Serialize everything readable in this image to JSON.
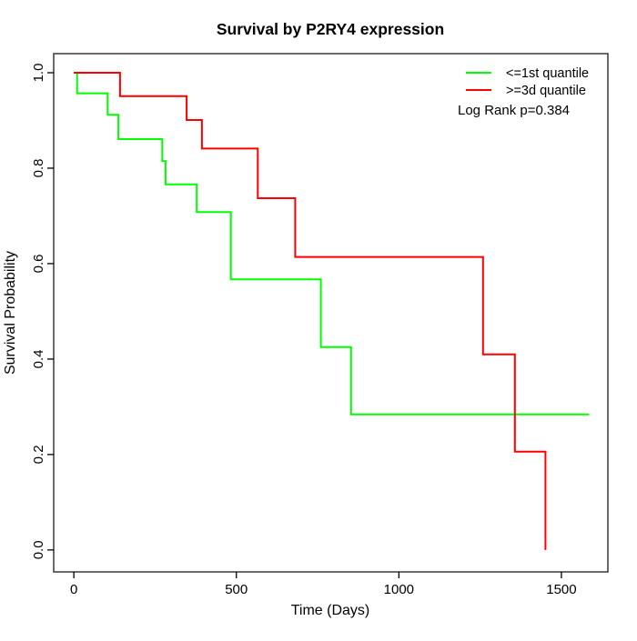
{
  "chart_data": {
    "type": "line",
    "subtype": "kaplan-meier-step",
    "title": "Survival by P2RY4 expression",
    "xlabel": "Time (Days)",
    "ylabel": "Survival Probability",
    "x_ticks": [
      0,
      500,
      1000,
      1500
    ],
    "y_ticks": [
      0.0,
      0.2,
      0.4,
      0.6,
      0.8,
      1.0
    ],
    "xlim": [
      -62,
      1643
    ],
    "ylim": [
      -0.046,
      1.04
    ],
    "grid": false,
    "legend_position": "top-right",
    "annotation": "Log Rank p=0.384",
    "series": [
      {
        "name": "<=1st quantile",
        "color": "#00ff00",
        "step_points": [
          [
            0,
            1.0
          ],
          [
            10,
            0.957
          ],
          [
            104,
            0.912
          ],
          [
            137,
            0.861
          ],
          [
            272,
            0.815
          ],
          [
            282,
            0.766
          ],
          [
            378,
            0.708
          ],
          [
            483,
            0.567
          ],
          [
            760,
            0.425
          ],
          [
            853,
            0.284
          ]
        ],
        "end_time": 1585
      },
      {
        "name": ">=3d quantile",
        "color": "#ff0000",
        "step_points": [
          [
            0,
            1.0
          ],
          [
            142,
            0.951
          ],
          [
            347,
            0.901
          ],
          [
            394,
            0.841
          ],
          [
            566,
            0.737
          ],
          [
            681,
            0.614
          ],
          [
            1259,
            0.41
          ],
          [
            1357,
            0.206
          ],
          [
            1451,
            0.0
          ]
        ],
        "end_time": 1451
      }
    ]
  }
}
